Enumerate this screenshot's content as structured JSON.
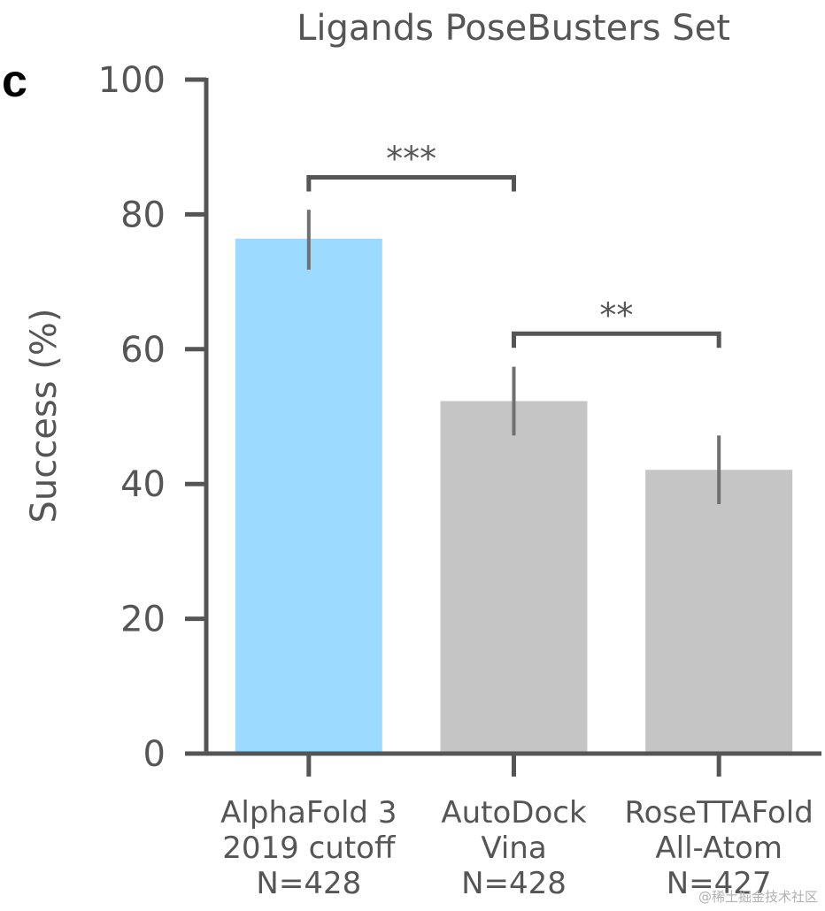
{
  "panel_letter": "c",
  "watermark": "@稀土掘金技术社区",
  "chart_data": {
    "type": "bar",
    "title": "Ligands PoseBusters Set",
    "xlabel": "",
    "ylabel": "Success (%)",
    "ylim": [
      0,
      100
    ],
    "yticks": [
      0,
      20,
      40,
      60,
      80,
      100
    ],
    "grid": false,
    "categories": [
      [
        "AlphaFold 3",
        "2019 cutoff",
        "N=428"
      ],
      [
        "AutoDock",
        "Vina",
        "N=428"
      ],
      [
        "RoseTTAFold",
        "All-Atom",
        "N=427"
      ]
    ],
    "values": [
      76.4,
      52.3,
      42.1
    ],
    "error_low": [
      71.8,
      47.2,
      37.0
    ],
    "error_high": [
      80.7,
      57.4,
      47.2
    ],
    "colors": [
      "#9cdaff",
      "#c5c5c5",
      "#c5c5c5"
    ],
    "significance": [
      {
        "from": 0,
        "to": 1,
        "y": 85.5,
        "label": "***"
      },
      {
        "from": 1,
        "to": 2,
        "y": 62.3,
        "label": "**"
      }
    ]
  }
}
